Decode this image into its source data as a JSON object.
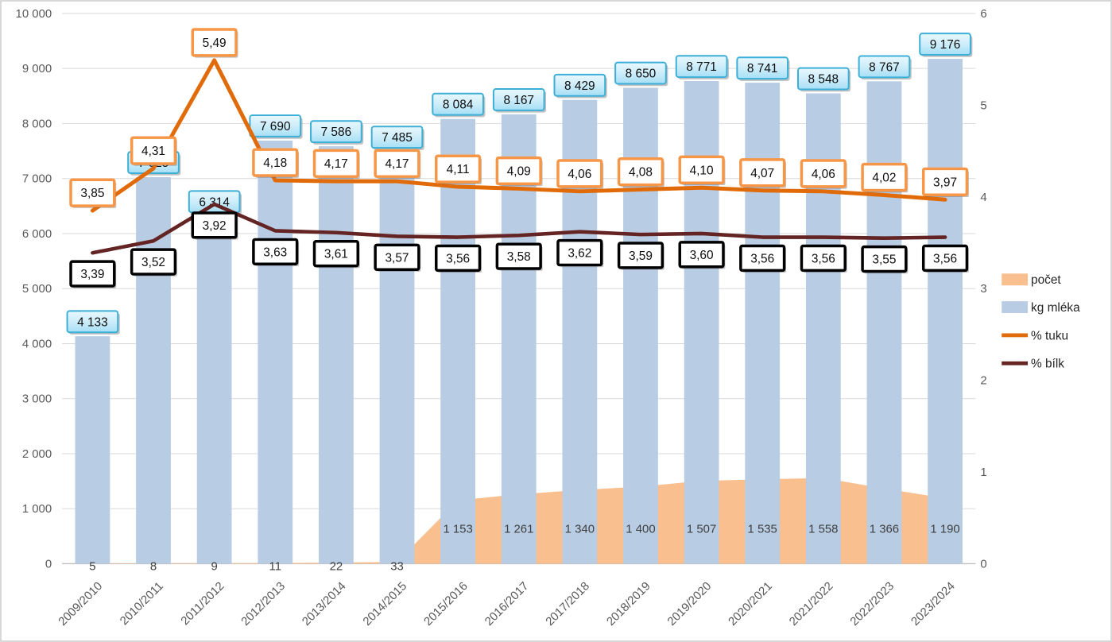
{
  "chart_data": {
    "type": "combo",
    "title": "",
    "categories": [
      "2009/2010",
      "2010/2011",
      "2011/2012",
      "2012/2013",
      "2013/2014",
      "2014/2015",
      "2015/2016",
      "2016/2017",
      "2017/2018",
      "2018/2019",
      "2019/2020",
      "2020/2021",
      "2021/2022",
      "2022/2023",
      "2023/2024"
    ],
    "series": [
      {
        "name": "počet",
        "type": "area",
        "axis": "left",
        "color": "#F9BF8F",
        "values": [
          5,
          8,
          9,
          11,
          22,
          33,
          1153,
          1261,
          1340,
          1400,
          1507,
          1535,
          1558,
          1366,
          1190
        ],
        "labels": [
          "5",
          "8",
          "9",
          "11",
          "22",
          "33",
          "1 153",
          "1 261",
          "1 340",
          "1 400",
          "1 507",
          "1 535",
          "1 558",
          "1 366",
          "1 190"
        ]
      },
      {
        "name": "kg mléka",
        "type": "bar",
        "axis": "left",
        "color": "#B8CCE4",
        "values": [
          4133,
          7025,
          6314,
          7690,
          7586,
          7485,
          8084,
          8167,
          8429,
          8650,
          8771,
          8741,
          8548,
          8767,
          9176
        ],
        "labels": [
          "4 133",
          "7 025",
          "6 314",
          "7 690",
          "7 586",
          "7 485",
          "8 084",
          "8 167",
          "8 429",
          "8 650",
          "8 771",
          "8 741",
          "8 548",
          "8 767",
          "9 176"
        ],
        "label_box": {
          "fill_top": "#E9F8FE",
          "fill_mid": "#CDEDFA",
          "fill_bottom": "#A6DFF5",
          "border": "#3BAFD7"
        }
      },
      {
        "name": "% tuku",
        "type": "line",
        "axis": "right",
        "color": "#E16B09",
        "values": [
          3.85,
          4.31,
          5.49,
          4.18,
          4.17,
          4.17,
          4.11,
          4.09,
          4.06,
          4.08,
          4.1,
          4.07,
          4.06,
          4.02,
          3.97
        ],
        "labels": [
          "3,85",
          "4,31",
          "5,49",
          "4,18",
          "4,17",
          "4,17",
          "4,11",
          "4,09",
          "4,06",
          "4,08",
          "4,10",
          "4,07",
          "4,06",
          "4,02",
          "3,97"
        ],
        "label_box": {
          "fill": "#FFFFFF",
          "border": "#F79646"
        }
      },
      {
        "name": "% bílk",
        "type": "line",
        "axis": "right",
        "color": "#632423",
        "values": [
          3.39,
          3.52,
          3.92,
          3.63,
          3.61,
          3.57,
          3.56,
          3.58,
          3.62,
          3.59,
          3.6,
          3.56,
          3.56,
          3.55,
          3.56
        ],
        "labels": [
          "3,39",
          "3,52",
          "3,92",
          "3,63",
          "3,61",
          "3,57",
          "3,56",
          "3,58",
          "3,62",
          "3,59",
          "3,60",
          "3,56",
          "3,56",
          "3,55",
          "3,56"
        ],
        "label_box": {
          "fill": "#FFFFFF",
          "border": "#000000"
        }
      }
    ],
    "left_axis": {
      "min": 0,
      "max": 10000,
      "step": 1000,
      "tick_labels": [
        "0",
        "1 000",
        "2 000",
        "3 000",
        "4 000",
        "5 000",
        "6 000",
        "7 000",
        "8 000",
        "9 000",
        "10 000"
      ]
    },
    "right_axis": {
      "min": 0,
      "max": 6,
      "step": 1,
      "tick_labels": [
        "0",
        "1",
        "2",
        "3",
        "4",
        "5",
        "6"
      ]
    },
    "legend": {
      "position": "right",
      "items": [
        "počet",
        "kg mléka",
        "% tuku",
        "% bílk"
      ]
    },
    "grid": true,
    "styles": {
      "axis_text": "#595959",
      "grid_line": "#D9D9D9",
      "baseline": "#BFBFBF",
      "legend_text": "#262626",
      "label_text": "#0D0D0D",
      "area_label_text": "#3F3F3F",
      "background": "#FFFFFF",
      "frame_border": "#D8D8D8"
    }
  }
}
